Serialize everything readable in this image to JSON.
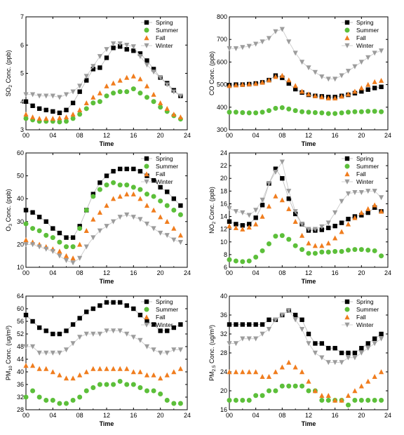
{
  "chart_data": [
    {
      "type": "scatter",
      "title": "",
      "xlabel": "Time",
      "ylabel_main": "SO",
      "ylabel_sub": "2",
      "ylabel_tail": " Conc. (ppb)",
      "xlim": [
        0,
        24
      ],
      "ylim": [
        3,
        7
      ],
      "xticks": [
        "00",
        "04",
        "08",
        "12",
        "16",
        "20",
        "24"
      ],
      "yticks": [
        "3",
        "4",
        "5",
        "6",
        "7"
      ],
      "legend_position": "top-right",
      "x": [
        0,
        1,
        2,
        3,
        4,
        5,
        6,
        7,
        8,
        9,
        10,
        11,
        12,
        13,
        14,
        15,
        16,
        17,
        18,
        19,
        20,
        21,
        22,
        23
      ],
      "series": [
        {
          "name": "Spring",
          "values": [
            4.0,
            3.85,
            3.75,
            3.7,
            3.65,
            3.6,
            3.7,
            3.95,
            4.35,
            4.75,
            5.15,
            5.2,
            5.55,
            5.9,
            5.95,
            5.85,
            5.8,
            5.7,
            5.45,
            5.15,
            4.85,
            4.65,
            4.4,
            4.2
          ]
        },
        {
          "name": "Summer",
          "values": [
            3.4,
            3.35,
            3.3,
            3.3,
            3.3,
            3.28,
            3.3,
            3.4,
            3.55,
            3.75,
            3.95,
            4.0,
            4.2,
            4.3,
            4.35,
            4.35,
            4.45,
            4.3,
            4.15,
            4.0,
            3.8,
            3.65,
            3.5,
            3.38
          ]
        },
        {
          "name": "Fall",
          "values": [
            3.55,
            3.45,
            3.4,
            3.4,
            3.4,
            3.42,
            3.45,
            3.55,
            3.7,
            3.95,
            4.15,
            4.3,
            4.55,
            4.65,
            4.75,
            4.85,
            4.9,
            4.8,
            4.55,
            4.25,
            3.95,
            3.75,
            3.55,
            3.45
          ]
        },
        {
          "name": "Winter",
          "values": [
            4.25,
            4.25,
            4.2,
            4.2,
            4.2,
            4.15,
            4.25,
            4.35,
            4.55,
            4.9,
            5.25,
            5.6,
            5.85,
            6.05,
            6.05,
            6.0,
            5.95,
            5.6,
            5.3,
            5.05,
            4.85,
            4.6,
            4.35,
            4.2
          ]
        }
      ]
    },
    {
      "type": "scatter",
      "title": "",
      "xlabel": "Time",
      "ylabel_main": "CO Conc. (ppb)",
      "ylabel_sub": "",
      "ylabel_tail": "",
      "xlim": [
        0,
        24
      ],
      "ylim": [
        300,
        800
      ],
      "xticks": [
        "00",
        "04",
        "08",
        "12",
        "16",
        "20",
        "24"
      ],
      "yticks": [
        "300",
        "400",
        "500",
        "600",
        "700",
        "800"
      ],
      "legend_position": "top-right",
      "x": [
        0,
        1,
        2,
        3,
        4,
        5,
        6,
        7,
        8,
        9,
        10,
        11,
        12,
        13,
        14,
        15,
        16,
        17,
        18,
        19,
        20,
        21,
        22,
        23
      ],
      "series": [
        {
          "name": "Spring",
          "values": [
            498,
            500,
            500,
            502,
            505,
            510,
            520,
            540,
            530,
            505,
            480,
            465,
            455,
            450,
            448,
            445,
            445,
            450,
            455,
            462,
            470,
            478,
            485,
            490
          ]
        },
        {
          "name": "Summer",
          "values": [
            378,
            378,
            376,
            375,
            375,
            378,
            385,
            395,
            398,
            392,
            385,
            380,
            378,
            376,
            375,
            372,
            372,
            375,
            378,
            380,
            380,
            382,
            382,
            380
          ]
        },
        {
          "name": "Fall",
          "values": [
            495,
            498,
            500,
            502,
            505,
            510,
            520,
            535,
            540,
            520,
            495,
            470,
            458,
            450,
            445,
            440,
            440,
            448,
            458,
            470,
            485,
            500,
            512,
            518
          ]
        },
        {
          "name": "Winter",
          "values": [
            660,
            660,
            665,
            670,
            680,
            690,
            705,
            735,
            745,
            690,
            640,
            600,
            575,
            555,
            535,
            525,
            525,
            540,
            560,
            580,
            600,
            620,
            640,
            650
          ]
        }
      ]
    },
    {
      "type": "scatter",
      "title": "",
      "xlabel": "Time",
      "ylabel_main": "O",
      "ylabel_sub": "3",
      "ylabel_tail": " Conc. (ppb)",
      "xlim": [
        0,
        24
      ],
      "ylim": [
        10,
        60
      ],
      "xticks": [
        "00",
        "04",
        "08",
        "12",
        "16",
        "20",
        "24"
      ],
      "yticks": [
        "10",
        "20",
        "30",
        "40",
        "50",
        "60"
      ],
      "legend_position": "top-right",
      "x": [
        0,
        1,
        2,
        3,
        4,
        5,
        6,
        7,
        8,
        9,
        10,
        11,
        12,
        13,
        14,
        15,
        16,
        17,
        18,
        19,
        20,
        21,
        22,
        23
      ],
      "series": [
        {
          "name": "Spring",
          "values": [
            35,
            34,
            32,
            30,
            27,
            25,
            23,
            23,
            28,
            35,
            42,
            47,
            50,
            52,
            53,
            53,
            53,
            52,
            50,
            48,
            45,
            43,
            40,
            37
          ]
        },
        {
          "name": "Summer",
          "values": [
            29,
            27,
            26,
            24,
            23,
            21,
            19,
            19,
            27,
            35,
            41,
            44,
            46,
            47,
            46,
            46,
            45,
            44,
            42,
            41,
            39,
            37,
            35,
            33
          ]
        },
        {
          "name": "Fall",
          "values": [
            22,
            21,
            20,
            19,
            18,
            17,
            15,
            14,
            20,
            26,
            31,
            34,
            37,
            40,
            41,
            42,
            42,
            40,
            37,
            35,
            32,
            30,
            27,
            24
          ]
        },
        {
          "name": "Winter",
          "values": [
            20,
            20,
            19,
            18,
            17,
            15,
            13,
            12,
            14,
            19,
            23,
            26,
            28,
            30,
            32,
            33,
            32,
            31,
            29,
            27,
            25,
            24,
            22,
            21
          ]
        }
      ]
    },
    {
      "type": "scatter",
      "title": "",
      "xlabel": "Time",
      "ylabel_main": "NO",
      "ylabel_sub": "2",
      "ylabel_tail": " Conc. (ppb)",
      "xlim": [
        0,
        24
      ],
      "ylim": [
        6,
        24
      ],
      "xticks": [
        "00",
        "04",
        "08",
        "12",
        "16",
        "20",
        "24"
      ],
      "yticks": [
        "6",
        "8",
        "10",
        "12",
        "14",
        "16",
        "18",
        "20",
        "22",
        "24"
      ],
      "legend_position": "top-right",
      "x": [
        0,
        1,
        2,
        3,
        4,
        5,
        6,
        7,
        8,
        9,
        10,
        11,
        12,
        13,
        14,
        15,
        16,
        17,
        18,
        19,
        20,
        21,
        22,
        23
      ],
      "series": [
        {
          "name": "Spring",
          "values": [
            13.2,
            12.8,
            12.6,
            12.8,
            13.8,
            15.8,
            19.2,
            21.5,
            20.0,
            16.8,
            14.4,
            12.8,
            11.8,
            11.8,
            11.9,
            12.2,
            12.5,
            13.0,
            13.6,
            14.0,
            14.2,
            14.6,
            15.4,
            14.8
          ]
        },
        {
          "name": "Summer",
          "values": [
            7.2,
            7.0,
            6.9,
            7.0,
            7.6,
            8.6,
            9.7,
            10.9,
            11.0,
            10.4,
            9.4,
            8.8,
            8.2,
            8.2,
            8.4,
            8.4,
            8.5,
            8.5,
            8.7,
            8.8,
            8.8,
            8.7,
            8.6,
            7.8
          ]
        },
        {
          "name": "Fall",
          "values": [
            12.5,
            12.2,
            12.0,
            12.3,
            12.8,
            14.0,
            15.6,
            17.2,
            16.6,
            15.2,
            13.2,
            11.0,
            9.8,
            9.4,
            9.4,
            9.8,
            10.6,
            11.6,
            12.8,
            13.8,
            14.6,
            15.2,
            15.8,
            14.8
          ]
        },
        {
          "name": "Winter",
          "values": [
            15.3,
            14.8,
            14.6,
            14.2,
            15.0,
            16.6,
            19.2,
            21.0,
            22.6,
            18.0,
            14.8,
            12.8,
            12.0,
            12.0,
            12.4,
            13.0,
            14.6,
            16.4,
            17.6,
            17.8,
            17.8,
            18.0,
            18.0,
            17.0
          ]
        }
      ]
    },
    {
      "type": "scatter",
      "title": "",
      "xlabel": "Time",
      "ylabel_main": "PM",
      "ylabel_sub": "10",
      "ylabel_tail": " Conc. (ug/m³)",
      "xlim": [
        0,
        24
      ],
      "ylim": [
        28,
        64
      ],
      "xticks": [
        "00",
        "04",
        "08",
        "12",
        "16",
        "20",
        "24"
      ],
      "yticks": [
        "28",
        "32",
        "36",
        "40",
        "44",
        "48",
        "52",
        "56",
        "60",
        "64"
      ],
      "legend_position": "top-right",
      "x": [
        0,
        1,
        2,
        3,
        4,
        5,
        6,
        7,
        8,
        9,
        10,
        11,
        12,
        13,
        14,
        15,
        16,
        17,
        18,
        19,
        20,
        21,
        22,
        23
      ],
      "series": [
        {
          "name": "Spring",
          "values": [
            58,
            56,
            54,
            53,
            52,
            52,
            53,
            55,
            57,
            59,
            60,
            61,
            62,
            62,
            62,
            61,
            60,
            58,
            56,
            55,
            53,
            53,
            54,
            55
          ]
        },
        {
          "name": "Summer",
          "values": [
            32,
            34,
            32,
            31,
            31,
            30,
            30,
            31,
            32,
            34,
            35,
            36,
            36,
            36,
            37,
            36,
            36,
            35,
            34,
            34,
            33,
            31,
            30,
            30
          ]
        },
        {
          "name": "Fall",
          "values": [
            42,
            42,
            41,
            41,
            40,
            39,
            38,
            38,
            39,
            40,
            41,
            41,
            41,
            41,
            41,
            41,
            40,
            40,
            39,
            39,
            38,
            39,
            40,
            41
          ]
        },
        {
          "name": "Winter",
          "values": [
            48,
            48,
            46,
            46,
            46,
            46,
            47,
            49,
            51,
            52,
            52,
            52,
            53,
            53,
            53,
            52,
            51,
            50,
            48,
            47,
            46,
            46,
            47,
            47
          ]
        }
      ]
    },
    {
      "type": "scatter",
      "title": "",
      "xlabel": "Time",
      "ylabel_main": "PM",
      "ylabel_sub": "2.5",
      "ylabel_tail": " Conc. (ug/m³)",
      "xlim": [
        0,
        24
      ],
      "ylim": [
        16,
        40
      ],
      "xticks": [
        "00",
        "04",
        "08",
        "12",
        "16",
        "20",
        "24"
      ],
      "yticks": [
        "16",
        "20",
        "24",
        "28",
        "32",
        "36",
        "40"
      ],
      "legend_position": "top-right",
      "x": [
        0,
        1,
        2,
        3,
        4,
        5,
        6,
        7,
        8,
        9,
        10,
        11,
        12,
        13,
        14,
        15,
        16,
        17,
        18,
        19,
        20,
        21,
        22,
        23
      ],
      "series": [
        {
          "name": "Spring",
          "values": [
            34,
            34,
            34,
            34,
            34,
            34,
            35,
            35,
            36,
            37,
            36,
            35,
            32,
            30,
            30,
            29,
            29,
            28,
            28,
            28,
            29,
            30,
            31,
            32
          ]
        },
        {
          "name": "Summer",
          "values": [
            18,
            18,
            18,
            18,
            19,
            19,
            20,
            20,
            21,
            21,
            21,
            21,
            20,
            20,
            18,
            18,
            18,
            18,
            17,
            18,
            18,
            18,
            18,
            18
          ]
        },
        {
          "name": "Fall",
          "values": [
            24,
            24,
            24,
            24,
            24,
            23,
            23,
            24,
            25,
            26,
            25,
            24,
            22,
            20,
            19,
            19,
            18,
            18,
            19,
            20,
            21,
            22,
            23,
            24
          ]
        },
        {
          "name": "Winter",
          "values": [
            30,
            30,
            31,
            31,
            31,
            32,
            33,
            35,
            36,
            37,
            35,
            33,
            30,
            28,
            27,
            26,
            26,
            26,
            27,
            27,
            28,
            29,
            30,
            31
          ]
        }
      ]
    }
  ],
  "styles": {
    "Spring": {
      "color": "#000000",
      "marker": "square",
      "line": "#bdbdbd"
    },
    "Summer": {
      "color": "#5cbf3a",
      "marker": "circle",
      "line": null
    },
    "Fall": {
      "color": "#f07d1e",
      "marker": "triangle-up",
      "line": null
    },
    "Winter": {
      "color": "#9c9c9c",
      "marker": "triangle-down",
      "line": "#cccccc"
    }
  }
}
